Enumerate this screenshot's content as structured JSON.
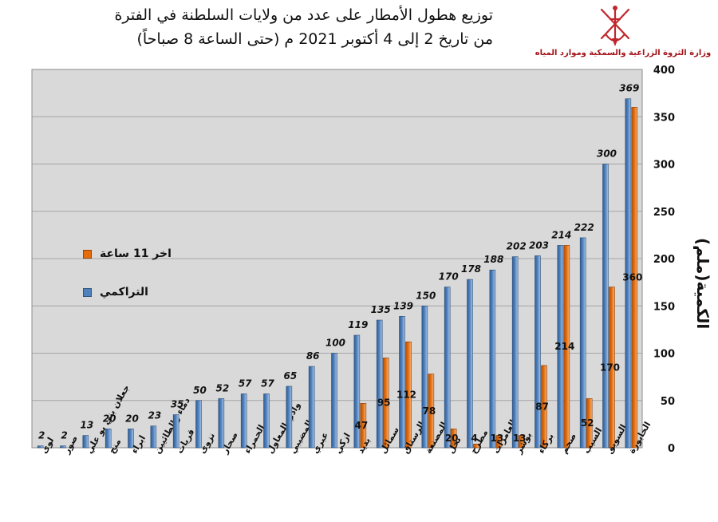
{
  "header": {
    "title_line1": "توزيع هطول الأمطار على عدد من ولايات السلطنة في الفترة",
    "title_line2": "من تاريخ 2 إلى 4  أكتوبر 2021 م (حتى الساعة 8 صباحاً)",
    "ministry": "وزارة الثروة الزراعية والسمكية وموارد المياه",
    "emblem_icon": "oman-national-emblem"
  },
  "colors": {
    "plot_background": "#d9d9d9",
    "cumulative_bar": "#4f81bd",
    "recent_bar": "#e46c0a",
    "ministry_text": "#a3131a",
    "emblem": "#c0272d"
  },
  "chart_data": {
    "type": "bar",
    "title": "توزيع هطول الأمطار على عدد من ولايات السلطنة في الفترة من تاريخ 2 إلى 4  أكتوبر 2021 م (حتى الساعة 8 صباحاً)",
    "ylabel": "الكمية(ملم)",
    "xlabel": "",
    "ylim": [
      0,
      400
    ],
    "yticks": [
      0,
      50,
      100,
      150,
      200,
      250,
      300,
      350,
      400
    ],
    "grid": true,
    "legend_position": "left",
    "categories": [
      "لوى",
      "صور",
      "جعلان بني بو علي",
      "منح",
      "ابراء",
      "دماء والطائيين",
      "قريات",
      "نزوى",
      "صحار",
      "الحمراء",
      "وادي المعاول",
      "المضيبي",
      "عبري",
      "ازكي",
      "بديد",
      "سمائل",
      "الرستاق",
      "المصنعة",
      "نخل",
      "مطرح",
      "العامرات",
      "بوشر",
      "بركاء",
      "صحم",
      "السيب",
      "السويق",
      "الخابورة"
    ],
    "series": [
      {
        "name": "التراكمي",
        "values": [
          2,
          2,
          13,
          20,
          20,
          23,
          35,
          50,
          52,
          57,
          57,
          65,
          86,
          100,
          119,
          135,
          139,
          150,
          170,
          178,
          188,
          202,
          203,
          214,
          222,
          300,
          369
        ],
        "labels": [
          "2",
          "2",
          "13",
          "20",
          "20",
          "23",
          "35",
          "50",
          "52",
          "57",
          "57",
          "65",
          "86",
          "100",
          "119",
          "135",
          "139",
          "150",
          "170",
          "178",
          "188",
          "202",
          "203",
          "214",
          "222",
          "300",
          "369"
        ]
      },
      {
        "name": "اخر 11 ساعة",
        "values": [
          null,
          null,
          null,
          null,
          null,
          null,
          null,
          null,
          null,
          null,
          null,
          null,
          null,
          null,
          47,
          95,
          112,
          78,
          20,
          4,
          13,
          13,
          87,
          214,
          52,
          170,
          360
        ],
        "labels": [
          "",
          "",
          "",
          "",
          "",
          "",
          "",
          "",
          "",
          "",
          "",
          "",
          "",
          "",
          "47",
          "95",
          "112",
          "78",
          "20",
          "4",
          "13",
          "13",
          "87",
          "214",
          "52",
          "170",
          "360"
        ]
      }
    ]
  }
}
